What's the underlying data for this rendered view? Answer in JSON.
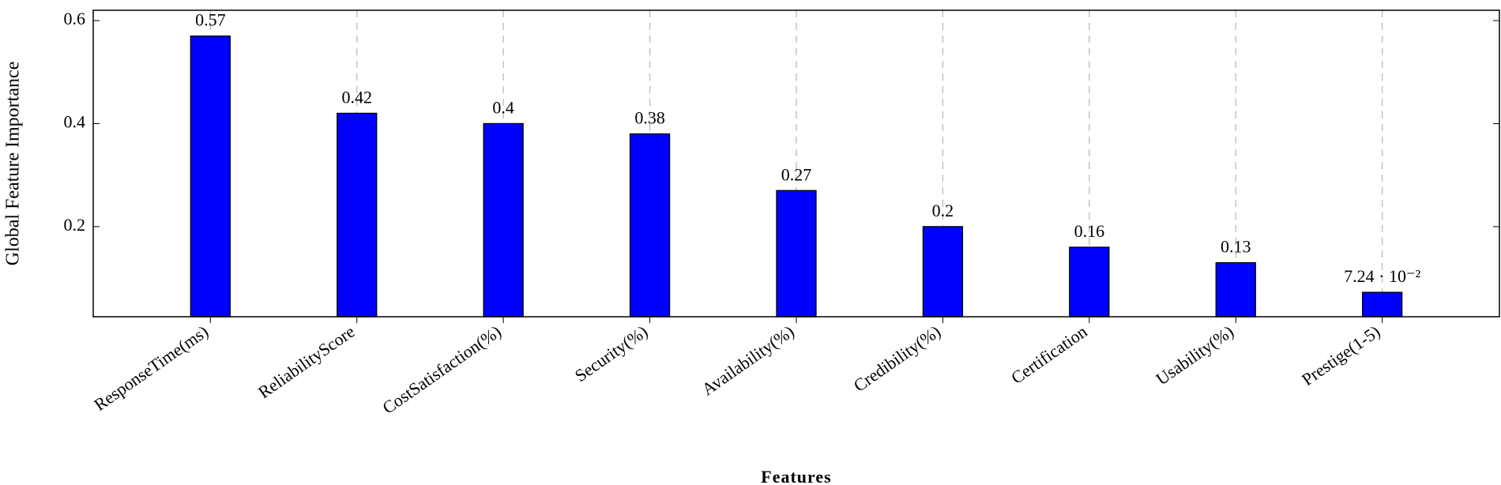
{
  "chart_data": {
    "type": "bar",
    "xlabel": "Features",
    "ylabel": "Global Feature Importance",
    "categories": [
      "ResponseTime(ms)",
      "ReliabilityScore",
      "CostSatisfaction(%)",
      "Security(%)",
      "Availability(%)",
      "Credibility(%)",
      "Certification",
      "Usability(%)",
      "Prestige(1-5)"
    ],
    "values": [
      0.57,
      0.42,
      0.4,
      0.38,
      0.27,
      0.2,
      0.16,
      0.13,
      0.0724
    ],
    "value_labels": [
      "0.57",
      "0.42",
      "0.4",
      "0.38",
      "0.27",
      "0.2",
      "0.16",
      "0.13",
      "7.24 · 10⁻²"
    ],
    "color": "#0000ff",
    "ylim": [
      0.025,
      0.62
    ],
    "yticks": [
      0.2,
      0.4,
      0.6
    ],
    "grid": "x"
  }
}
